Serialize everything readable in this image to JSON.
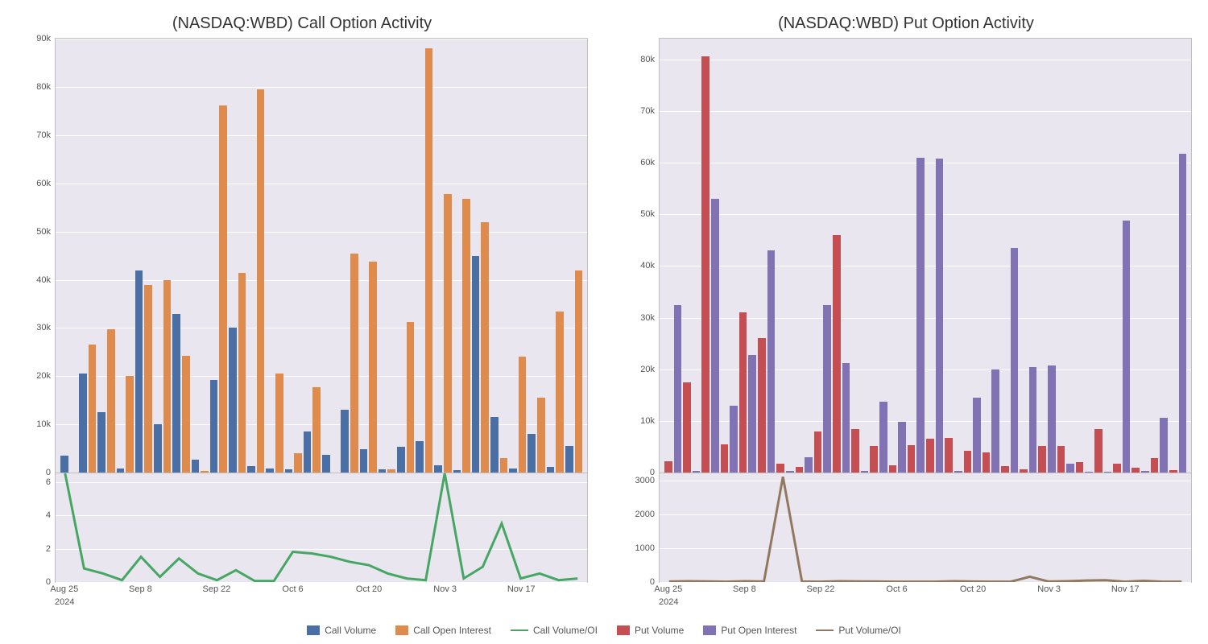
{
  "colors": {
    "call_volume": "#4a6fa5",
    "call_oi": "#e08b4e",
    "call_ratio": "#45a763",
    "put_volume": "#c44e52",
    "put_oi": "#8172b3",
    "put_ratio": "#937860",
    "plot_bg": "#e9e6ef",
    "grid": "#ffffff",
    "border": "#bfbfbf"
  },
  "legend": {
    "call_volume": "Call Volume",
    "call_oi": "Call Open Interest",
    "call_ratio": "Call Volume/OI",
    "put_volume": "Put Volume",
    "put_oi": "Put Open Interest",
    "put_ratio": "Put Volume/OI"
  },
  "xaxis": {
    "ticks": [
      "Aug 25",
      "Sep 8",
      "Sep 22",
      "Oct 6",
      "Oct 20",
      "Nov 3",
      "Nov 17"
    ],
    "year": "2024",
    "tick_fontsize": 11
  },
  "call": {
    "title": "(NASDAQ:WBD) Call Option Activity",
    "title_fontsize": 20,
    "bar": {
      "ymax": 90000,
      "ytick_step": 10000,
      "ytick_format": "k",
      "volume": [
        3500,
        20500,
        12500,
        800,
        42000,
        10000,
        33000,
        2700,
        19200,
        30000,
        1300,
        900,
        700,
        8500,
        3700,
        13000,
        4800,
        700,
        5300,
        6600,
        1600,
        600,
        45000,
        11500,
        800,
        8000,
        1200,
        5500
      ],
      "oi": [
        100,
        26500,
        29800,
        20000,
        39000,
        40000,
        24200,
        400,
        76200,
        41500,
        79500,
        20500,
        4000,
        17800,
        100,
        45500,
        43800,
        700,
        31200,
        88000,
        57800,
        56800,
        52000,
        3000,
        24000,
        15500,
        33500,
        42000
      ]
    },
    "ratio": {
      "ymax": 6.5,
      "yticks": [
        0,
        2,
        4,
        6
      ],
      "values": [
        6.8,
        0.8,
        0.5,
        0.1,
        1.5,
        0.3,
        1.4,
        0.5,
        0.1,
        0.7,
        0.05,
        0.05,
        1.8,
        1.7,
        1.5,
        1.2,
        1.0,
        0.5,
        0.2,
        0.1,
        6.8,
        0.2,
        0.9,
        3.5,
        0.2,
        0.5,
        0.1,
        0.2
      ]
    }
  },
  "put": {
    "title": "(NASDAQ:WBD) Put Option Activity",
    "title_fontsize": 20,
    "bar": {
      "ymax": 84000,
      "ytick_step": 10000,
      "ytick_format": "k",
      "volume": [
        2200,
        17500,
        80500,
        5500,
        31000,
        26000,
        1700,
        1200,
        8000,
        46000,
        8500,
        5100,
        1500,
        5300,
        6500,
        6700,
        4300,
        4000,
        1300,
        700,
        5200,
        5200,
        2100,
        8500,
        1700,
        1000,
        2900,
        500
      ],
      "oi": [
        32500,
        400,
        53000,
        13000,
        22800,
        43000,
        400,
        3000,
        32500,
        21200,
        400,
        13700,
        9800,
        61000,
        60800,
        400,
        14500,
        20000,
        43500,
        20500,
        20700,
        1800,
        200,
        200,
        48800,
        400,
        10600,
        61800
      ]
    },
    "ratio": {
      "ymax": 3200,
      "yticks": [
        0,
        1000,
        2000,
        3000
      ],
      "values": [
        10,
        20,
        15,
        5,
        20,
        10,
        3100,
        10,
        5,
        20,
        15,
        10,
        5,
        5,
        5,
        20,
        10,
        5,
        5,
        150,
        10,
        20,
        40,
        50,
        5,
        30,
        5,
        5
      ]
    }
  }
}
